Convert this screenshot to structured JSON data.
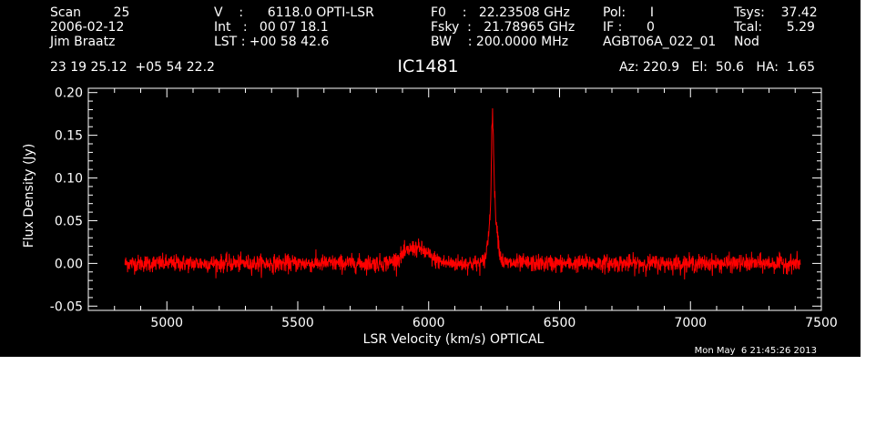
{
  "header": {
    "col1": [
      "Scan        25",
      "2006-02-12",
      "Jim Braatz"
    ],
    "col2": [
      "V    :      6118.0 OPTI-LSR",
      "Int   :   00 07 18.1",
      "LST : +00 58 42.6"
    ],
    "col3": [
      "F0    :   22.23508 GHz",
      "Fsky  :   21.78965 GHz",
      "BW    : 200.0000 MHz"
    ],
    "col4": [
      "Pol:      I",
      "IF :      0",
      "AGBT06A_022_01"
    ],
    "col5": [
      "Tsys:    37.42",
      "Tcal:      5.29",
      "Nod"
    ],
    "coords": "23 19 25.12  +05 54 22.2",
    "azel": "Az: 220.9   El:  50.6   HA:  1.65"
  },
  "timestamp": "Mon May  6 21:45:26 2013",
  "chart_data": {
    "type": "line",
    "title": "IC1481",
    "xlabel": "LSR Velocity (km/s) OPTICAL",
    "ylabel": "Flux Density (Jy)",
    "xlim": [
      4700,
      7500
    ],
    "ylim": [
      -0.055,
      0.205
    ],
    "xticks": [
      5000,
      5500,
      6000,
      6500,
      7000,
      7500
    ],
    "yticks": [
      -0.05,
      0.0,
      0.05,
      0.1,
      0.15,
      0.2
    ],
    "ytick_labels": [
      "-0.05",
      "0.00",
      "0.05",
      "0.10",
      "0.15",
      "0.20"
    ],
    "grid": false,
    "line_color": "#ff0000",
    "axis_color": "#ffffff",
    "background": "#000000",
    "series": [
      {
        "x_range": [
          4840,
          7420
        ],
        "noise_sigma": 0.005,
        "features": [
          {
            "center": 5950,
            "width": 45,
            "amplitude": 0.018
          },
          {
            "center": 6246,
            "width": 14,
            "amplitude": 0.075
          },
          {
            "center": 6244,
            "width": 4,
            "amplitude": 0.1
          }
        ]
      }
    ]
  }
}
